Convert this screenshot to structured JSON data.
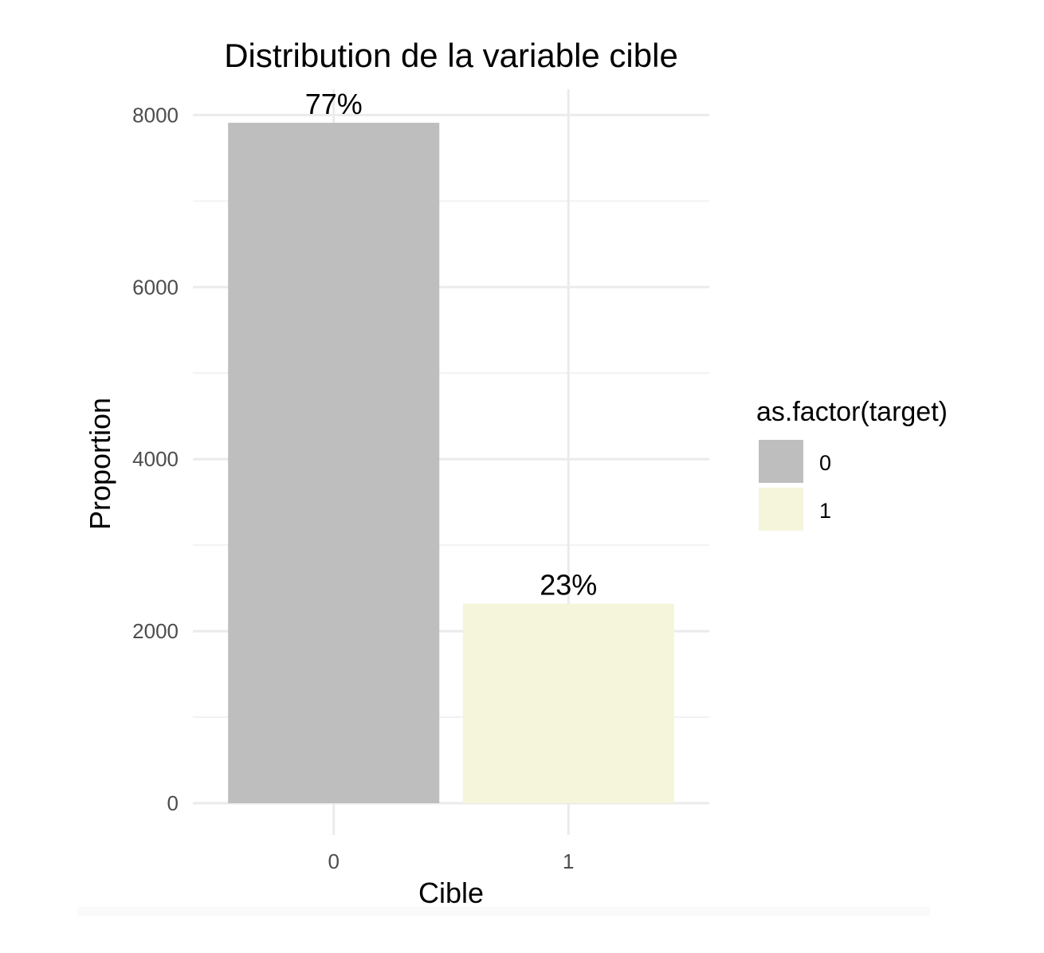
{
  "chart_data": {
    "type": "bar",
    "title": "Distribution de la variable cible",
    "xlabel": "Cible",
    "ylabel": "Proportion",
    "categories": [
      "0",
      "1"
    ],
    "values": [
      7910,
      2320
    ],
    "bar_labels": [
      "77%",
      "23%"
    ],
    "ylim": [
      0,
      8300
    ],
    "yticks": [
      0,
      2000,
      4000,
      6000,
      8000
    ],
    "ytick_labels": [
      "0",
      "2000",
      "4000",
      "6000",
      "8000"
    ],
    "grid": true,
    "colors": [
      "#bebebe",
      "#f5f5dc"
    ],
    "legend": {
      "title": "as.factor(target)",
      "position": "right",
      "entries": [
        "0",
        "1"
      ]
    }
  }
}
